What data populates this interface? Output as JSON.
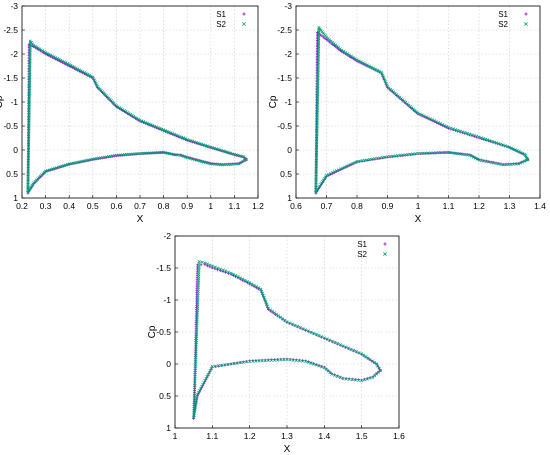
{
  "chart_data": [
    {
      "type": "scatter",
      "xlabel": "X",
      "ylabel": "Cp",
      "xlim": [
        0.2,
        1.2
      ],
      "ylim": [
        1,
        -3
      ],
      "y_inverted": true,
      "xticks": [
        "0.2",
        "0.3",
        "0.4",
        "0.5",
        "0.6",
        "0.7",
        "0.8",
        "0.9",
        "1",
        "1.1",
        "1.2"
      ],
      "yticks": [
        "-3",
        "-2.5",
        "-2",
        "-1.5",
        "-1",
        "-0.5",
        "0",
        "0.5",
        "1"
      ],
      "grid": true,
      "legend_position": "top-right",
      "series": [
        {
          "name": "S1",
          "color": "#9400d3",
          "marker": "plus",
          "upper_x": [
            0.225,
            0.23,
            0.25,
            0.3,
            0.4,
            0.5,
            0.52,
            0.6,
            0.7,
            0.8,
            0.9,
            1.0,
            1.1,
            1.14,
            1.15
          ],
          "upper_y": [
            0.9,
            -2.2,
            -2.15,
            -2.0,
            -1.75,
            -1.5,
            -1.3,
            -0.9,
            -0.6,
            -0.4,
            -0.2,
            -0.05,
            0.1,
            0.15,
            0.2
          ],
          "lower_x": [
            1.15,
            1.12,
            1.05,
            1.0,
            0.9,
            0.87,
            0.85,
            0.8,
            0.7,
            0.6,
            0.5,
            0.4,
            0.3,
            0.25,
            0.225
          ],
          "lower_y": [
            0.2,
            0.28,
            0.3,
            0.28,
            0.15,
            0.1,
            0.1,
            0.05,
            0.08,
            0.12,
            0.2,
            0.3,
            0.45,
            0.7,
            0.9
          ]
        },
        {
          "name": "S2",
          "color": "#009e73",
          "marker": "cross",
          "upper_x": [
            0.225,
            0.235,
            0.25,
            0.3,
            0.4,
            0.5,
            0.52,
            0.6,
            0.7,
            0.8,
            0.9,
            1.0,
            1.1,
            1.14,
            1.15
          ],
          "upper_y": [
            0.88,
            -2.27,
            -2.18,
            -2.03,
            -1.78,
            -1.52,
            -1.32,
            -0.92,
            -0.62,
            -0.42,
            -0.22,
            -0.06,
            0.09,
            0.14,
            0.2
          ],
          "lower_x": [
            1.15,
            1.12,
            1.05,
            1.0,
            0.9,
            0.87,
            0.85,
            0.8,
            0.7,
            0.6,
            0.5,
            0.4,
            0.3,
            0.25,
            0.225
          ],
          "lower_y": [
            0.2,
            0.29,
            0.31,
            0.29,
            0.16,
            0.11,
            0.1,
            0.05,
            0.07,
            0.11,
            0.19,
            0.29,
            0.44,
            0.68,
            0.88
          ]
        }
      ]
    },
    {
      "type": "scatter",
      "xlabel": "X",
      "ylabel": "Cp",
      "xlim": [
        0.6,
        1.4
      ],
      "ylim": [
        1,
        -3
      ],
      "y_inverted": true,
      "xticks": [
        "0.6",
        "0.7",
        "0.8",
        "0.9",
        "1",
        "1.1",
        "1.2",
        "1.3",
        "1.4"
      ],
      "yticks": [
        "-3",
        "-2.5",
        "-2",
        "-1.5",
        "-1",
        "-0.5",
        "0",
        "0.5",
        "1"
      ],
      "grid": true,
      "legend_position": "top-right",
      "series": [
        {
          "name": "S1",
          "color": "#9400d3",
          "marker": "plus",
          "upper_x": [
            0.665,
            0.67,
            0.7,
            0.75,
            0.8,
            0.88,
            0.9,
            1.0,
            1.1,
            1.2,
            1.3,
            1.35,
            1.36
          ],
          "upper_y": [
            0.9,
            -2.45,
            -2.3,
            -2.05,
            -1.85,
            -1.6,
            -1.3,
            -0.75,
            -0.45,
            -0.25,
            -0.05,
            0.1,
            0.2
          ],
          "lower_x": [
            1.36,
            1.33,
            1.28,
            1.2,
            1.17,
            1.1,
            1.0,
            0.9,
            0.8,
            0.7,
            0.665
          ],
          "lower_y": [
            0.2,
            0.28,
            0.3,
            0.2,
            0.1,
            0.05,
            0.08,
            0.15,
            0.25,
            0.55,
            0.9
          ]
        },
        {
          "name": "S2",
          "color": "#009e73",
          "marker": "cross",
          "upper_x": [
            0.665,
            0.675,
            0.7,
            0.75,
            0.8,
            0.88,
            0.9,
            1.0,
            1.1,
            1.2,
            1.3,
            1.35,
            1.36
          ],
          "upper_y": [
            0.88,
            -2.55,
            -2.35,
            -2.08,
            -1.88,
            -1.62,
            -1.32,
            -0.77,
            -0.47,
            -0.27,
            -0.06,
            0.09,
            0.2
          ],
          "lower_x": [
            1.36,
            1.33,
            1.28,
            1.2,
            1.17,
            1.1,
            1.0,
            0.9,
            0.8,
            0.7,
            0.665
          ],
          "lower_y": [
            0.2,
            0.29,
            0.31,
            0.21,
            0.11,
            0.05,
            0.07,
            0.14,
            0.24,
            0.53,
            0.88
          ]
        }
      ]
    },
    {
      "type": "scatter",
      "xlabel": "X",
      "ylabel": "Cp",
      "xlim": [
        1.0,
        1.6
      ],
      "ylim": [
        1,
        -2
      ],
      "y_inverted": true,
      "xticks": [
        "1",
        "1.1",
        "1.2",
        "1.3",
        "1.4",
        "1.5",
        "1.6"
      ],
      "yticks": [
        "-2",
        "-1.5",
        "-1",
        "-0.5",
        "0",
        "0.5",
        "1"
      ],
      "grid": true,
      "legend_position": "top-right",
      "series": [
        {
          "name": "S1",
          "color": "#9400d3",
          "marker": "plus",
          "upper_x": [
            1.05,
            1.06,
            1.08,
            1.1,
            1.15,
            1.2,
            1.23,
            1.25,
            1.3,
            1.4,
            1.5,
            1.54,
            1.55
          ],
          "upper_y": [
            0.85,
            -1.55,
            -1.55,
            -1.5,
            -1.4,
            -1.25,
            -1.15,
            -0.85,
            -0.65,
            -0.4,
            -0.15,
            0.0,
            0.1
          ],
          "lower_x": [
            1.55,
            1.53,
            1.5,
            1.45,
            1.42,
            1.4,
            1.35,
            1.3,
            1.2,
            1.1,
            1.06,
            1.05
          ],
          "lower_y": [
            0.1,
            0.2,
            0.25,
            0.22,
            0.15,
            0.05,
            -0.05,
            -0.08,
            -0.05,
            0.05,
            0.5,
            0.85
          ]
        },
        {
          "name": "S2",
          "color": "#009e73",
          "marker": "cross",
          "upper_x": [
            1.05,
            1.065,
            1.08,
            1.1,
            1.15,
            1.2,
            1.23,
            1.25,
            1.3,
            1.4,
            1.5,
            1.54,
            1.55
          ],
          "upper_y": [
            0.83,
            -1.6,
            -1.58,
            -1.53,
            -1.42,
            -1.27,
            -1.17,
            -0.87,
            -0.66,
            -0.41,
            -0.16,
            0.0,
            0.1
          ],
          "lower_x": [
            1.55,
            1.53,
            1.5,
            1.45,
            1.42,
            1.4,
            1.35,
            1.3,
            1.2,
            1.1,
            1.06,
            1.05
          ],
          "lower_y": [
            0.1,
            0.21,
            0.26,
            0.23,
            0.16,
            0.06,
            -0.04,
            -0.07,
            -0.04,
            0.04,
            0.48,
            0.83
          ]
        }
      ]
    }
  ]
}
